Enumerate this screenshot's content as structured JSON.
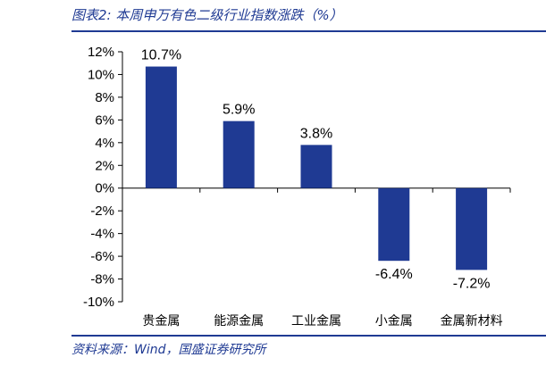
{
  "figure": {
    "title": "图表2:  本周申万有色二级行业指数涨跌（%）",
    "source": "资料来源：Wind，国盛证券研究所"
  },
  "chart_data": {
    "type": "bar",
    "categories": [
      "贵金属",
      "能源金属",
      "工业金属",
      "小金属",
      "金属新材料"
    ],
    "values": [
      10.7,
      5.9,
      3.8,
      -6.4,
      -7.2
    ],
    "data_labels": [
      "10.7%",
      "5.9%",
      "3.8%",
      "-6.4%",
      "-7.2%"
    ],
    "ylim": [
      -10,
      12
    ],
    "yticks": [
      12,
      10,
      8,
      6,
      4,
      2,
      0,
      -2,
      -4,
      -6,
      -8,
      -10
    ],
    "ytick_labels": [
      "12%",
      "10%",
      "8%",
      "6%",
      "4%",
      "2%",
      "0%",
      "-2%",
      "-4%",
      "-6%",
      "-8%",
      "-10%"
    ],
    "xlabel": "",
    "ylabel": "",
    "grid": false,
    "bar_color": "#1f3a93"
  }
}
